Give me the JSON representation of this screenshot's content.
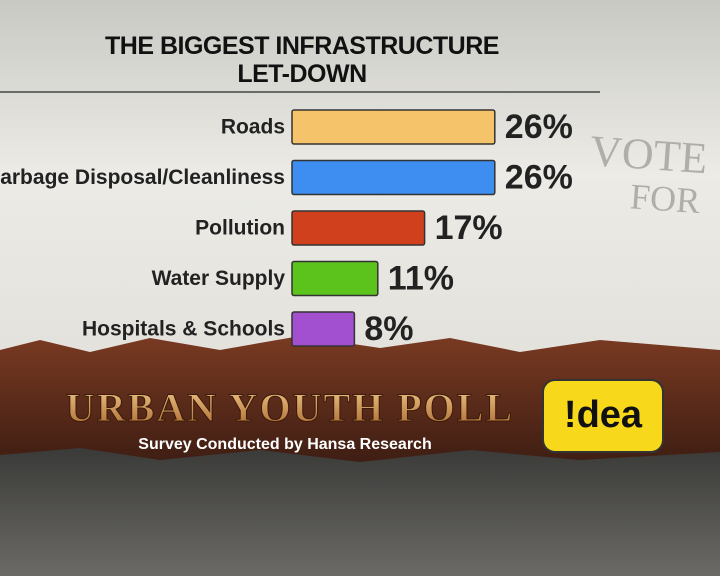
{
  "chart_data": {
    "type": "bar",
    "orientation": "horizontal",
    "title": "THE BIGGEST INFRASTRUCTURE\nLET-DOWN",
    "categories": [
      "Roads",
      "Garbage Disposal/Cleanliness",
      "Pollution",
      "Water Supply",
      "Hospitals & Schools"
    ],
    "values": [
      26,
      26,
      17,
      11,
      8
    ],
    "value_labels": [
      "26%",
      "26%",
      "17%",
      "11%",
      "8%"
    ],
    "colors": [
      "#f5c46a",
      "#3d8ef0",
      "#d0401c",
      "#5cc21c",
      "#a24fd0"
    ],
    "brand_title": "URBAN YOUTH POLL",
    "subtitle": "Survey Conducted by Hansa Research",
    "logo": "!dea",
    "annotations": [
      "VOTE",
      "FOR"
    ]
  }
}
